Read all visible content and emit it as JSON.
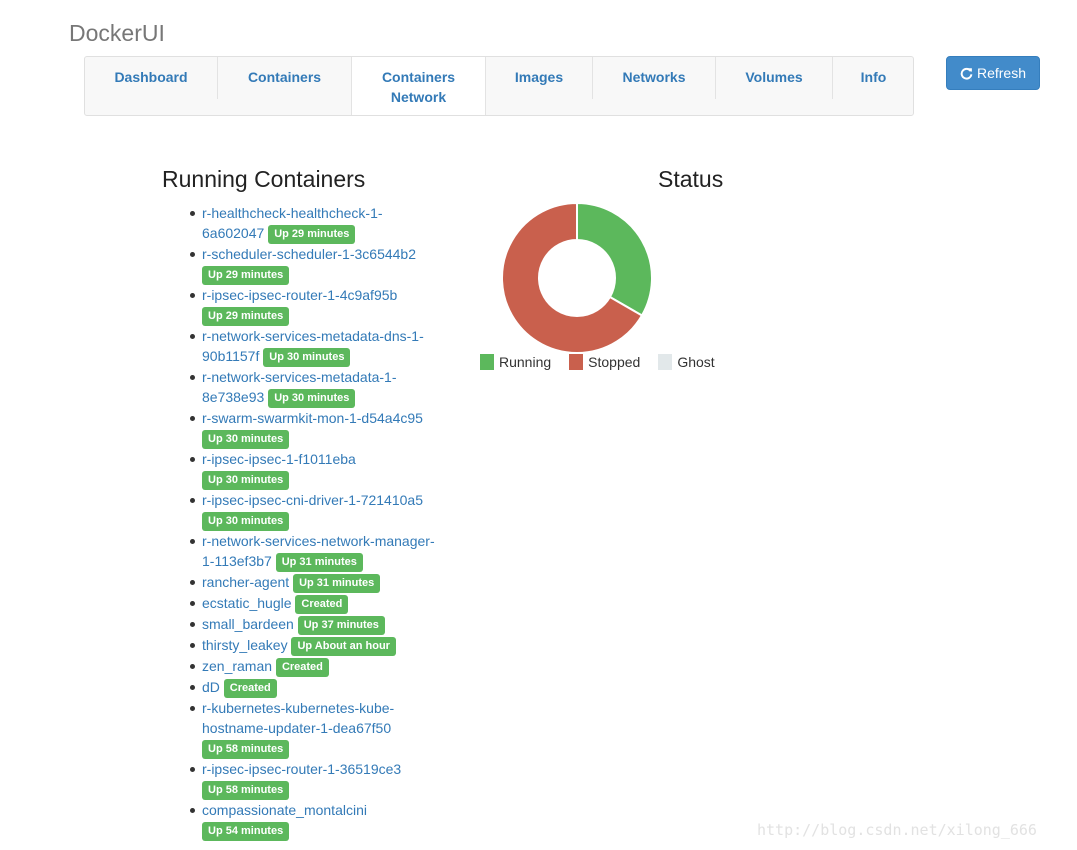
{
  "brand": "DockerUI",
  "nav": {
    "tabs": [
      {
        "line1": "Dashboard",
        "line2": ""
      },
      {
        "line1": "Containers",
        "line2": ""
      },
      {
        "line1": "Containers",
        "line2": "Network"
      },
      {
        "line1": "Images",
        "line2": ""
      },
      {
        "line1": "Networks",
        "line2": ""
      },
      {
        "line1": "Volumes",
        "line2": ""
      },
      {
        "line1": "Info",
        "line2": ""
      }
    ],
    "refresh_label": "Refresh"
  },
  "running": {
    "heading": "Running Containers",
    "items": [
      {
        "name": "r-healthcheck-healthcheck-1-6a602047",
        "status": "Up 29 minutes"
      },
      {
        "name": "r-scheduler-scheduler-1-3c6544b2",
        "status": "Up 29 minutes"
      },
      {
        "name": "r-ipsec-ipsec-router-1-4c9af95b",
        "status": "Up 29 minutes"
      },
      {
        "name": "r-network-services-metadata-dns-1-90b1157f",
        "status": "Up 30 minutes"
      },
      {
        "name": "r-network-services-metadata-1-8e738e93",
        "status": "Up 30 minutes"
      },
      {
        "name": "r-swarm-swarmkit-mon-1-d54a4c95",
        "status": "Up 30 minutes"
      },
      {
        "name": "r-ipsec-ipsec-1-f1011eba",
        "status": "Up 30 minutes"
      },
      {
        "name": "r-ipsec-ipsec-cni-driver-1-721410a5",
        "status": "Up 30 minutes"
      },
      {
        "name": "r-network-services-network-manager-1-113ef3b7",
        "status": "Up 31 minutes"
      },
      {
        "name": "rancher-agent",
        "status": "Up 31 minutes"
      },
      {
        "name": "ecstatic_hugle",
        "status": "Created"
      },
      {
        "name": "small_bardeen",
        "status": "Up 37 minutes"
      },
      {
        "name": "thirsty_leakey",
        "status": "Up About an hour"
      },
      {
        "name": "zen_raman",
        "status": "Created"
      },
      {
        "name": "dD",
        "status": "Created"
      },
      {
        "name": "r-kubernetes-kubernetes-kube-hostname-updater-1-dea67f50",
        "status": "Up 58 minutes"
      },
      {
        "name": "r-ipsec-ipsec-router-1-36519ce3",
        "status": "Up 58 minutes"
      },
      {
        "name": "compassionate_montalcini",
        "status": "Up 54 minutes"
      }
    ]
  },
  "status": {
    "heading": "Status",
    "legend": [
      {
        "label": "Running",
        "color": "#5cb85c"
      },
      {
        "label": "Stopped",
        "color": "#c9604d"
      },
      {
        "label": "Ghost",
        "color": "#e2e8ea"
      }
    ]
  },
  "chart_data": {
    "type": "pie",
    "title": "Status",
    "categories": [
      "Running",
      "Stopped",
      "Ghost"
    ],
    "values": [
      1,
      2,
      0
    ],
    "colors": [
      "#5cb85c",
      "#c9604d",
      "#e2e8ea"
    ],
    "legend": "bottom"
  },
  "watermark": "http://blog.csdn.net/xilong_666"
}
